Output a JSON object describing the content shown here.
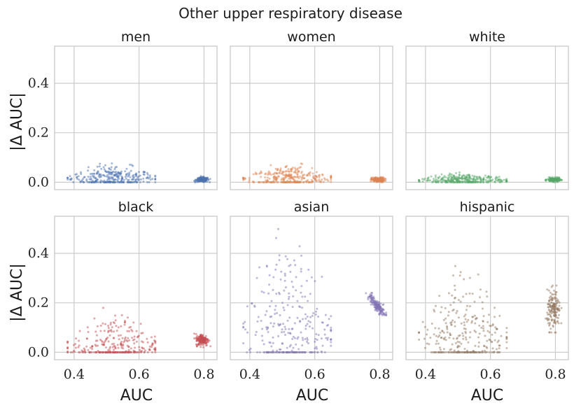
{
  "chart_data": {
    "type": "scatter",
    "title": "Other upper respiratory disease",
    "xlabel": "AUC",
    "ylabel": "|Δ AUC|",
    "xlim": [
      0.34,
      0.84
    ],
    "ylim": [
      -0.03,
      0.55
    ],
    "xticks": [
      0.4,
      0.6,
      0.8
    ],
    "yticks": [
      0.0,
      0.2,
      0.4
    ],
    "xtick_labels": [
      "0.4",
      "0.6",
      "0.8"
    ],
    "ytick_labels": [
      "0.0",
      "0.2",
      "0.4"
    ],
    "grid": true,
    "panels": [
      {
        "name": "men",
        "color": "#4C72B0",
        "series": [
          {
            "name": "low-AUC cluster",
            "x_range": [
              0.38,
              0.65
            ],
            "y_range": [
              0.0,
              0.08
            ],
            "center": [
              0.52,
              0.04
            ]
          },
          {
            "name": "high-AUC cluster",
            "x_range": [
              0.77,
              0.82
            ],
            "y_range": [
              0.0,
              0.025
            ],
            "center": [
              0.795,
              0.01
            ]
          }
        ]
      },
      {
        "name": "women",
        "color": "#DD8452",
        "series": [
          {
            "name": "low-AUC cluster",
            "x_range": [
              0.38,
              0.65
            ],
            "y_range": [
              0.0,
              0.08
            ],
            "center": [
              0.52,
              0.04
            ]
          },
          {
            "name": "high-AUC cluster",
            "x_range": [
              0.77,
              0.82
            ],
            "y_range": [
              0.0,
              0.025
            ],
            "center": [
              0.795,
              0.01
            ]
          }
        ]
      },
      {
        "name": "white",
        "color": "#55A868",
        "series": [
          {
            "name": "low-AUC cluster",
            "x_range": [
              0.38,
              0.65
            ],
            "y_range": [
              0.0,
              0.04
            ],
            "center": [
              0.52,
              0.02
            ]
          },
          {
            "name": "high-AUC cluster",
            "x_range": [
              0.77,
              0.82
            ],
            "y_range": [
              0.0,
              0.02
            ],
            "center": [
              0.795,
              0.01
            ]
          }
        ]
      },
      {
        "name": "black",
        "color": "#C44E52",
        "series": [
          {
            "name": "low-AUC cluster",
            "x_range": [
              0.38,
              0.65
            ],
            "y_range": [
              0.0,
              0.19
            ],
            "center": [
              0.52,
              0.05
            ]
          },
          {
            "name": "high-AUC cluster",
            "x_range": [
              0.77,
              0.82
            ],
            "y_range": [
              0.02,
              0.08
            ],
            "center": [
              0.795,
              0.05
            ]
          }
        ]
      },
      {
        "name": "asian",
        "color": "#8172B3",
        "series": [
          {
            "name": "low-AUC cluster",
            "x_range": [
              0.38,
              0.65
            ],
            "y_range": [
              0.0,
              0.52
            ],
            "center": [
              0.52,
              0.22
            ]
          },
          {
            "name": "high-AUC cluster",
            "x_range": [
              0.75,
              0.82
            ],
            "y_range": [
              0.15,
              0.24
            ],
            "center": [
              0.79,
              0.19
            ]
          }
        ]
      },
      {
        "name": "hispanic",
        "color": "#937860",
        "series": [
          {
            "name": "low-AUC cluster",
            "x_range": [
              0.38,
              0.65
            ],
            "y_range": [
              0.0,
              0.36
            ],
            "center": [
              0.52,
              0.16
            ]
          },
          {
            "name": "high-AUC cluster",
            "x_range": [
              0.77,
              0.82
            ],
            "y_range": [
              0.08,
              0.27
            ],
            "center": [
              0.795,
              0.17
            ]
          }
        ]
      }
    ]
  }
}
